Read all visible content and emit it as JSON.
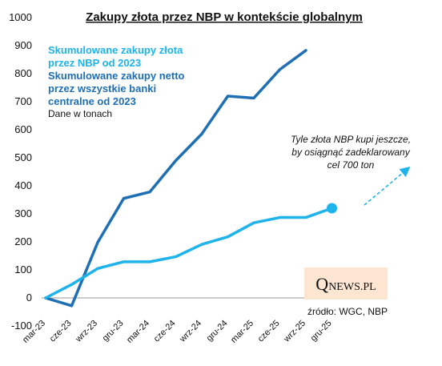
{
  "chart_data": {
    "type": "line",
    "title": "Zakupy złota przez NBP w kontekście globalnym",
    "categories": [
      "mar-23",
      "cze-23",
      "wrz-23",
      "gru-23",
      "mar-24",
      "cze-24",
      "wrz-24",
      "gru-24",
      "mar-25",
      "cze-25",
      "wrz-25",
      "gru-25"
    ],
    "ylim": [
      -100,
      1000
    ],
    "yticks": [
      "-100",
      "0",
      "100",
      "200",
      "300",
      "400",
      "500",
      "600",
      "700",
      "800",
      "900",
      "1000"
    ],
    "grid": false,
    "legend": {
      "position": "top-left",
      "lines": [
        {
          "text": "Skumulowane zakupy złota",
          "color": "#1EB3EA"
        },
        {
          "text": "przez NBP  od 2023",
          "color": "#1EB3EA"
        },
        {
          "text": "Skumulowane zakupy netto",
          "color": "#1F6FB4"
        },
        {
          "text": "przez wszystkie banki",
          "color": "#1F6FB4"
        },
        {
          "text": "centralne od 2023",
          "color": "#1F6FB4"
        },
        {
          "text": "Dane w tonach",
          "color": "#111111"
        }
      ]
    },
    "series": [
      {
        "name": "Skumulowane zakupy netto przez wszystkie banki centralne od 2023",
        "color": "#1F6FB4",
        "values": [
          0,
          -28,
          198,
          355,
          378,
          490,
          585,
          720,
          713,
          815,
          883,
          null
        ]
      },
      {
        "name": "Skumulowane zakupy złota przez NBP od 2023",
        "color": "#1EB3EA",
        "values": [
          0,
          48,
          105,
          129,
          129,
          147,
          191,
          218,
          268,
          287,
          287,
          320
        ]
      }
    ],
    "annotation": {
      "lines": [
        "Tyle złota NBP kupi jeszcze,",
        "by osiągnąć zadeklarowany",
        "cel 700 ton"
      ],
      "arrow_color": "#1EB3EA"
    },
    "source": "źródło: WGC, NBP",
    "logo": {
      "q": "Q",
      "rest": "NEWS.PL",
      "bg": "#FCE6D2"
    }
  }
}
